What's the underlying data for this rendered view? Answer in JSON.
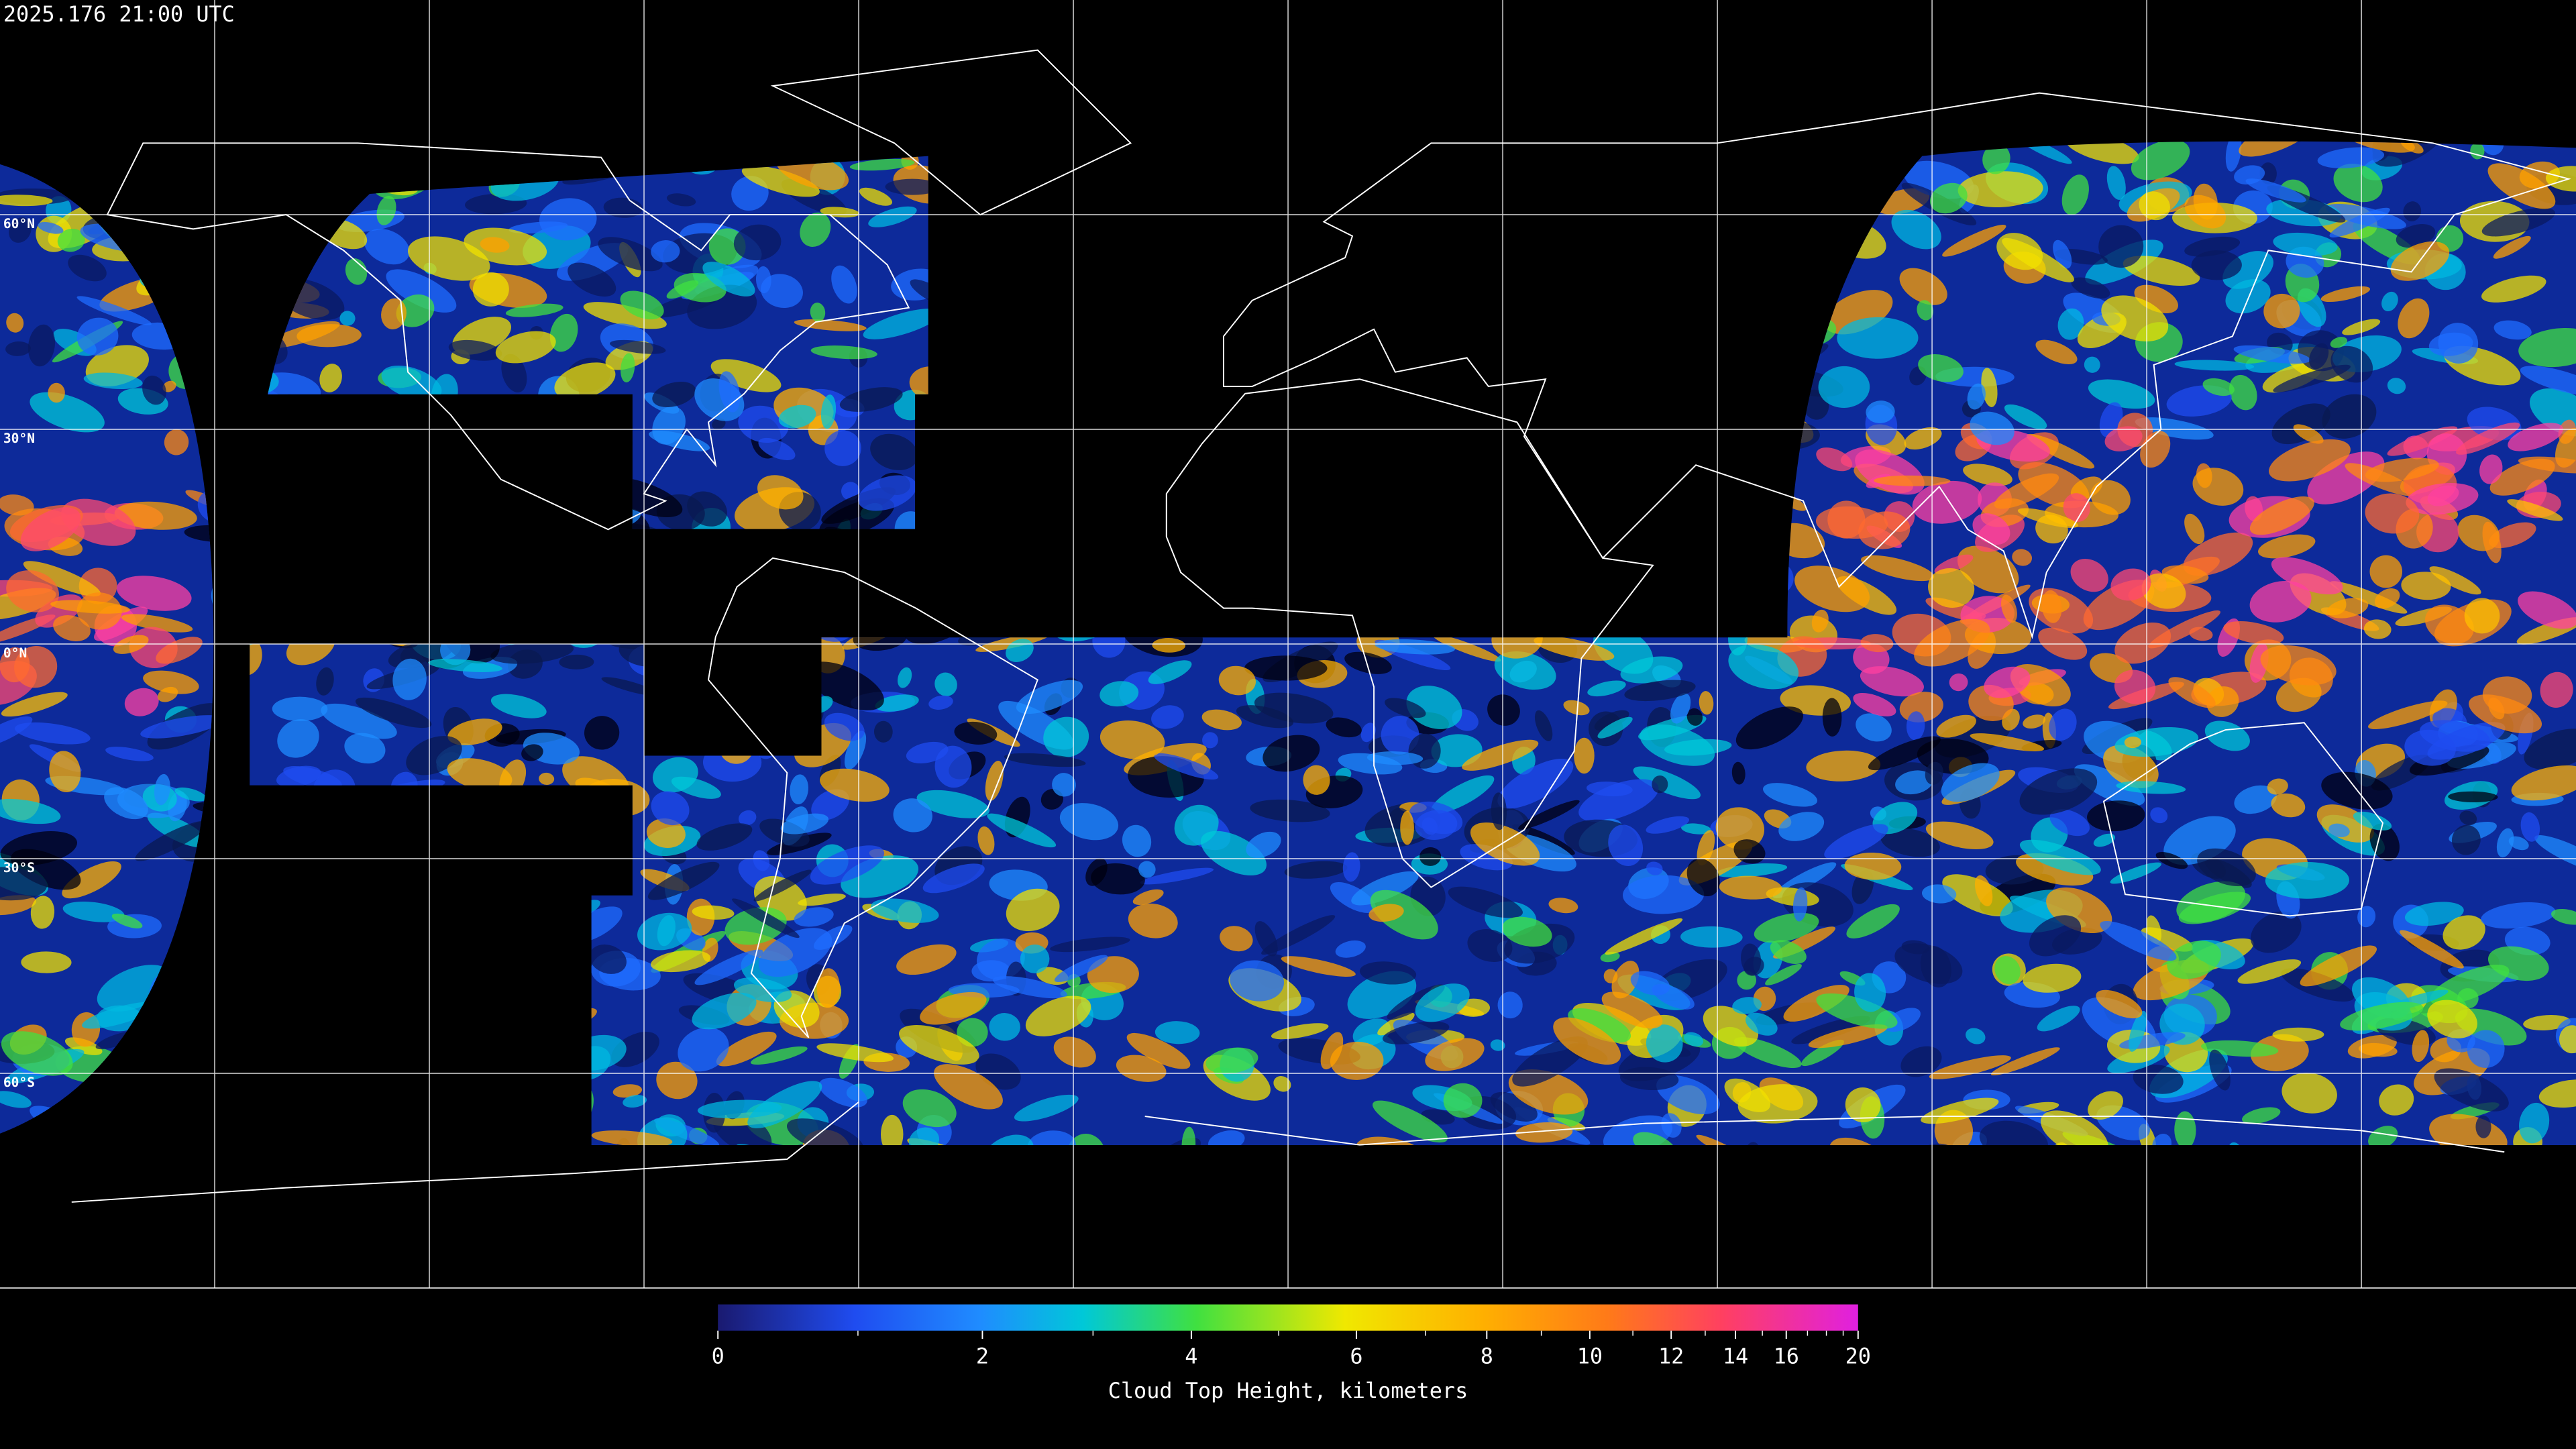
{
  "timestamp": "2025.176 21:00 UTC",
  "latitude_labels": [
    "60°N",
    "30°N",
    "0°N",
    "30°S",
    "60°S"
  ],
  "colorbar": {
    "title": "Cloud Top Height, kilometers",
    "range": [
      0,
      20
    ],
    "ticks": [
      0,
      2,
      4,
      6,
      8,
      10,
      12,
      14,
      16,
      20
    ],
    "minor_ticks": [
      1,
      3,
      5,
      7,
      9,
      11,
      13,
      15,
      17,
      18,
      19
    ]
  }
}
